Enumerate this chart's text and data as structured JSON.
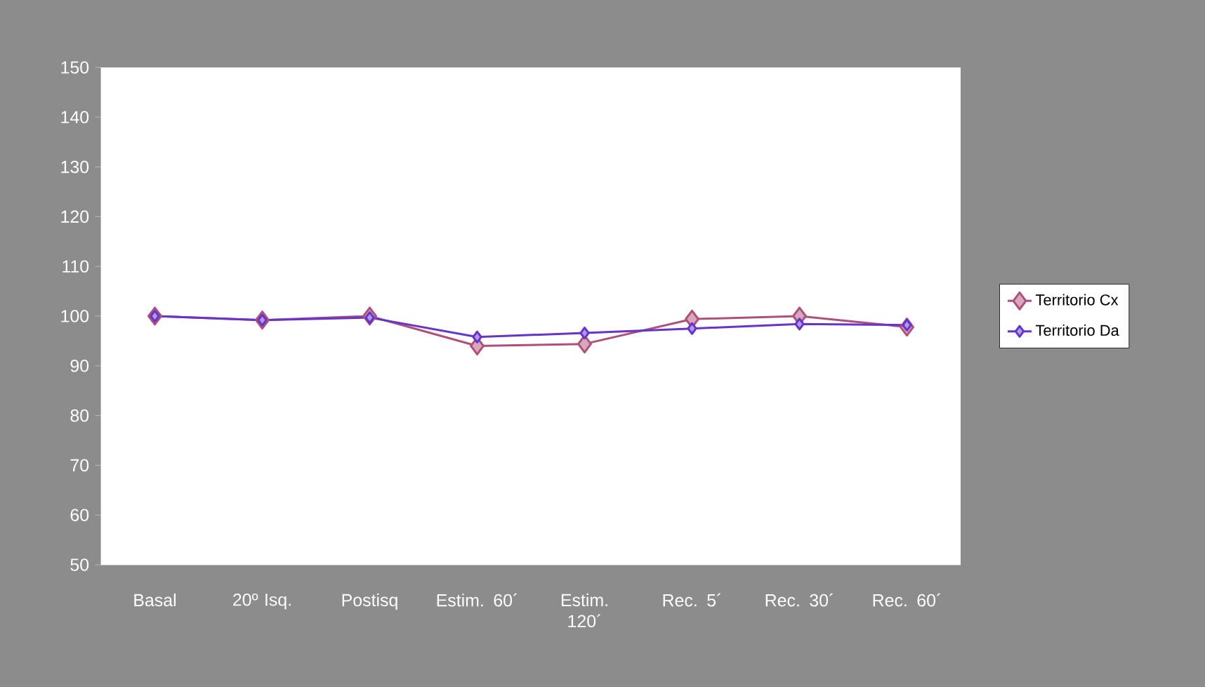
{
  "chart_data": {
    "type": "line",
    "categories": [
      "Basal",
      "20º Isq.",
      "Postisq",
      "Estim. 60´",
      "Estim. 120´",
      "Rec. 5´",
      "Rec. 30´",
      "Rec. 60´"
    ],
    "series": [
      {
        "name": "Territorio Cx",
        "color": "#b0507a",
        "values": [
          100,
          99.2,
          100,
          94,
          94.4,
          99.4,
          100,
          97.8
        ]
      },
      {
        "name": "Territorio Da",
        "color": "#6633cc",
        "values": [
          100,
          99.2,
          99.7,
          95.8,
          96.6,
          97.5,
          98.4,
          98.2
        ]
      }
    ],
    "ylim": [
      50,
      150
    ],
    "yticks": [
      50,
      60,
      70,
      80,
      90,
      100,
      110,
      120,
      130,
      140,
      150
    ],
    "marker": "diamond",
    "line_style": "solid",
    "legend": "right",
    "grid": false
  }
}
